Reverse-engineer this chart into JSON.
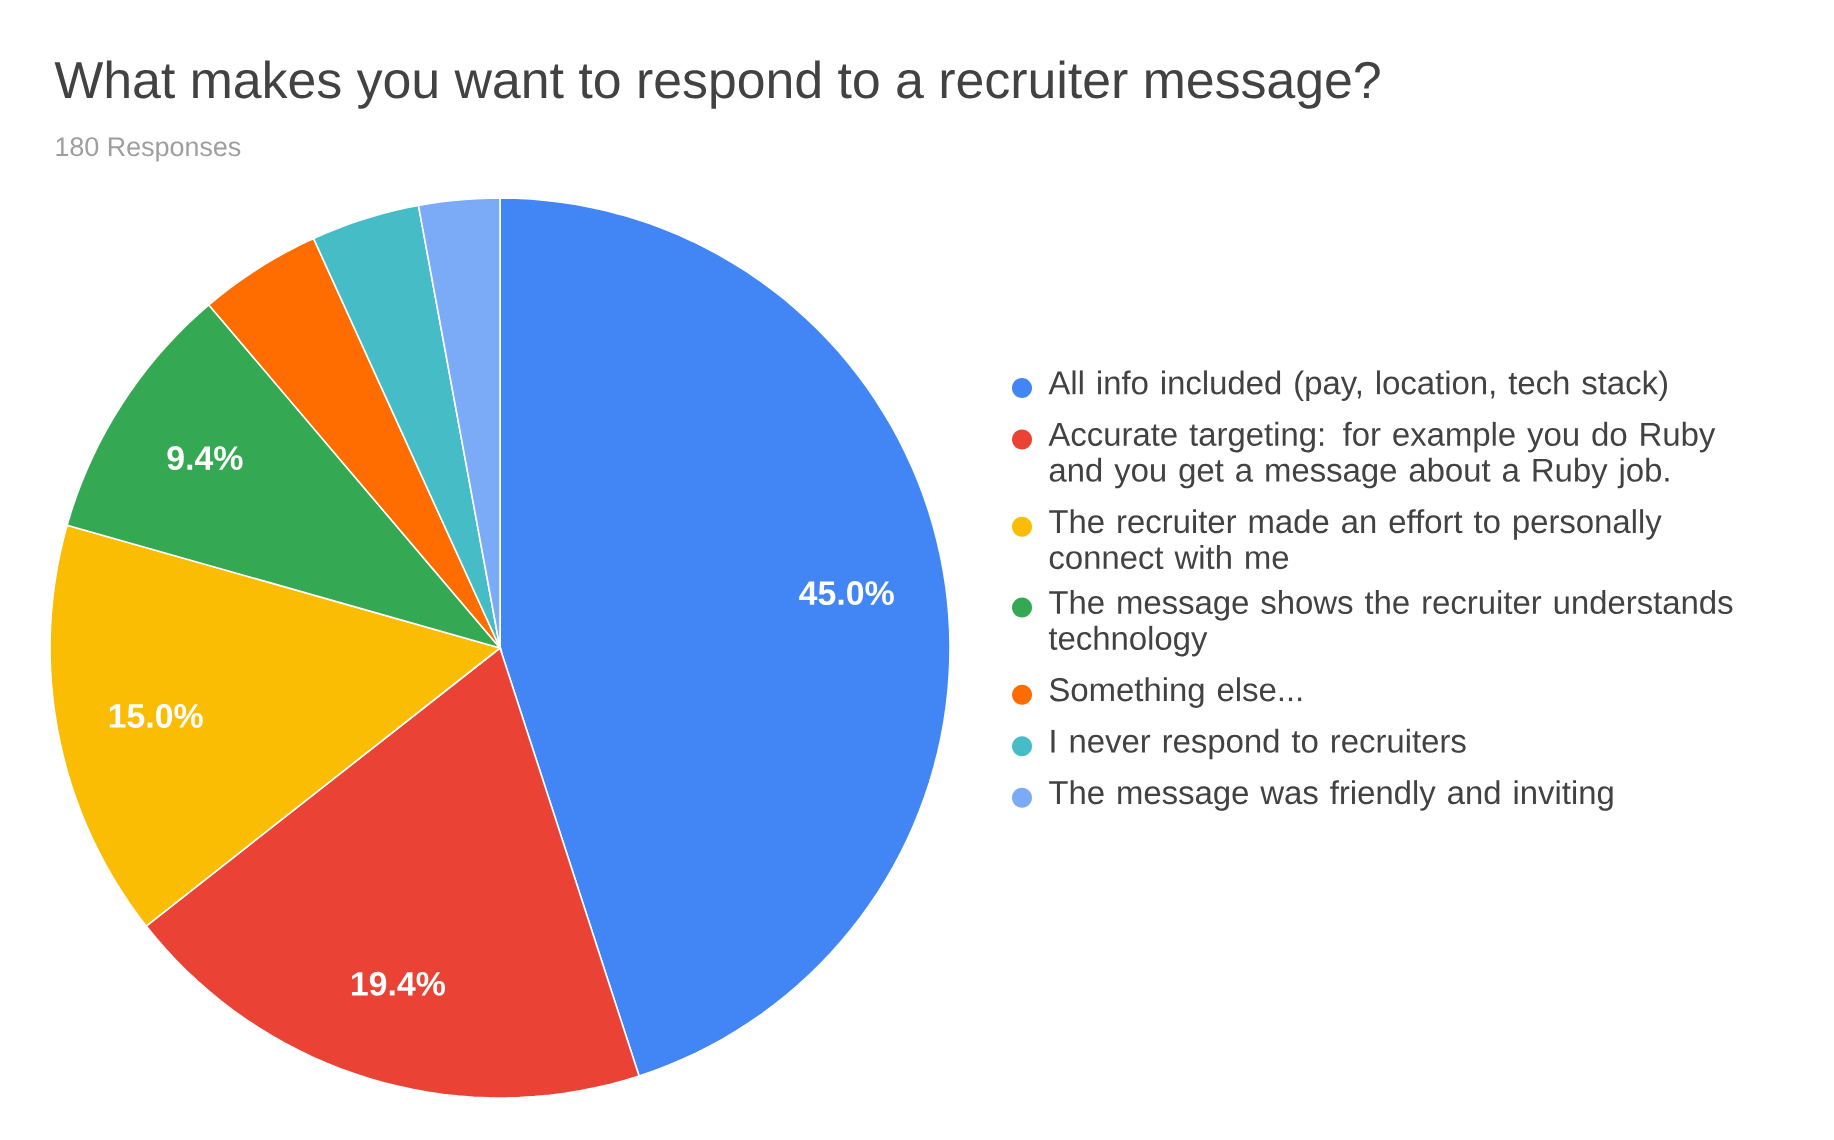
{
  "chart_data": {
    "type": "pie",
    "title": "What makes you want to respond to a recruiter message?",
    "subtitle": "180 Responses",
    "categories": [
      "All info included (pay, location, tech stack)",
      "Accurate targeting: for example you do Ruby and you get a message about a Ruby job.",
      "The recruiter made an effort to personally connect with me",
      "The message shows the recruiter understands technology",
      "Something else...",
      "I never respond to recruiters",
      "The message was friendly and inviting"
    ],
    "values": [
      45.0,
      19.4,
      15.0,
      9.4,
      4.4,
      3.9,
      2.9
    ],
    "value_labels": [
      "45.0%",
      "19.4%",
      "15.0%",
      "9.4%",
      null,
      null,
      null
    ],
    "colors": [
      "#4285f4",
      "#ea4335",
      "#fbbc04",
      "#34a853",
      "#ff6d01",
      "#46bdc6",
      "#7baaf7"
    ],
    "legend": "right"
  }
}
